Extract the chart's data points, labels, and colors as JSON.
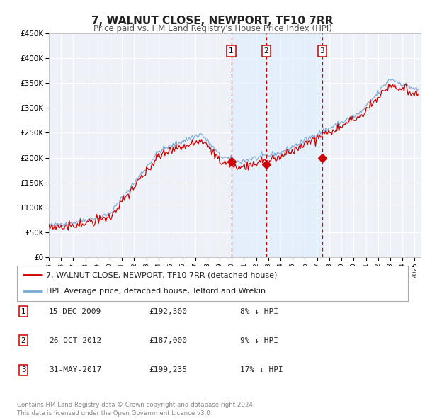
{
  "title": "7, WALNUT CLOSE, NEWPORT, TF10 7RR",
  "subtitle": "Price paid vs. HM Land Registry's House Price Index (HPI)",
  "hpi_color": "#6699cc",
  "hpi_fill_color": "#ddeeff",
  "price_color": "#cc0000",
  "background_color": "#ffffff",
  "plot_bg_color": "#f5f5f5",
  "grid_color": "#cccccc",
  "shade_color": "#ddeeff",
  "ylim": [
    0,
    450000
  ],
  "yticks": [
    0,
    50000,
    100000,
    150000,
    200000,
    250000,
    300000,
    350000,
    400000,
    450000
  ],
  "ytick_labels": [
    "£0",
    "£50K",
    "£100K",
    "£150K",
    "£200K",
    "£250K",
    "£300K",
    "£350K",
    "£400K",
    "£450K"
  ],
  "xlim_start": 1995.0,
  "xlim_end": 2025.5,
  "xticks": [
    1995,
    1996,
    1997,
    1998,
    1999,
    2000,
    2001,
    2002,
    2003,
    2004,
    2005,
    2006,
    2007,
    2008,
    2009,
    2010,
    2011,
    2012,
    2013,
    2014,
    2015,
    2016,
    2017,
    2018,
    2019,
    2020,
    2021,
    2022,
    2023,
    2024,
    2025
  ],
  "sale_dates": [
    2009.96,
    2012.82,
    2017.42
  ],
  "sale_prices": [
    192500,
    187000,
    199235
  ],
  "sale_labels": [
    "1",
    "2",
    "3"
  ],
  "legend_line1": "7, WALNUT CLOSE, NEWPORT, TF10 7RR (detached house)",
  "legend_line2": "HPI: Average price, detached house, Telford and Wrekin",
  "table_rows": [
    [
      "1",
      "15-DEC-2009",
      "£192,500",
      "8% ↓ HPI"
    ],
    [
      "2",
      "26-OCT-2012",
      "£187,000",
      "9% ↓ HPI"
    ],
    [
      "3",
      "31-MAY-2017",
      "£199,235",
      "17% ↓ HPI"
    ]
  ],
  "footer_text": "Contains HM Land Registry data © Crown copyright and database right 2024.\nThis data is licensed under the Open Government Licence v3.0.",
  "vline_color": "#cc0000",
  "marker_color": "#cc0000",
  "label_box_text_color": "#000000",
  "label_box_edge_color": "#cc0000"
}
